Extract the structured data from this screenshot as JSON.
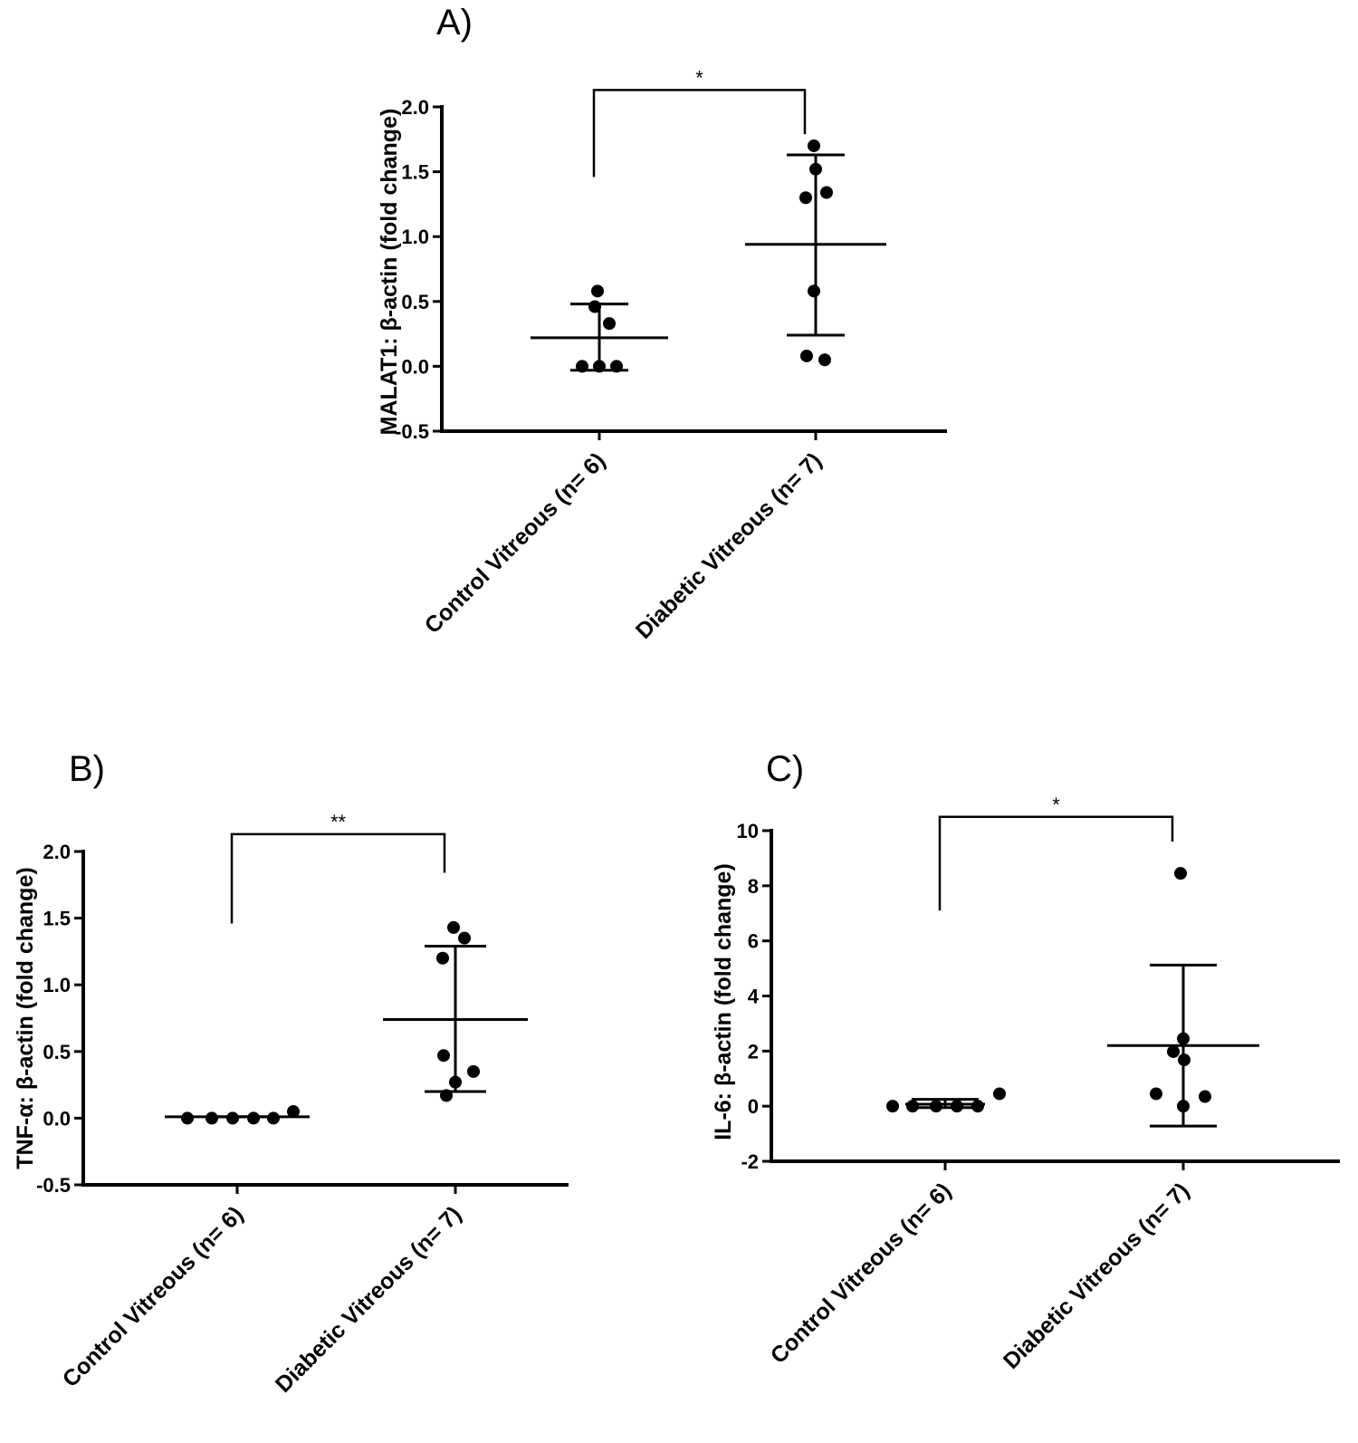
{
  "chart_data": [
    {
      "type": "scatter",
      "panel": "A)",
      "ylabel": "MALAT1: β-actin (fold change)",
      "categories": [
        "Control Vitreous (n= 6)",
        "Diabetic Vitreous (n= 7)"
      ],
      "ylim": [
        -0.5,
        2.0
      ],
      "yticks": [
        "2.0",
        "1.5",
        "1.0",
        "0.5",
        "0.0",
        "-0.5"
      ],
      "ytick_values": [
        2.0,
        1.5,
        1.0,
        0.5,
        0.0,
        -0.5
      ],
      "series": [
        {
          "values": [
            0.58,
            0.46,
            0.33,
            0.0,
            0.0,
            0.0
          ],
          "mean": 0.22,
          "sd_upper": 0.48,
          "sd_lower": -0.03
        },
        {
          "values": [
            1.7,
            1.52,
            1.34,
            1.3,
            0.58,
            0.08,
            0.05
          ],
          "mean": 0.94,
          "sd_upper": 1.63,
          "sd_lower": 0.24
        }
      ],
      "significance": "*",
      "bracket_y": 2.13,
      "bracket_left_bottom": 1.46,
      "bracket_right_bottom": 1.79
    },
    {
      "type": "scatter",
      "panel": "B)",
      "ylabel": "TNF-α: β-actin (fold change)",
      "categories": [
        "Control Vitreous (n= 6)",
        "Diabetic Vitreous (n= 7)"
      ],
      "ylim": [
        -0.5,
        2.0
      ],
      "yticks": [
        "2.0",
        "1.5",
        "1.0",
        "0.5",
        "0.0",
        "-0.5"
      ],
      "ytick_values": [
        2.0,
        1.5,
        1.0,
        0.5,
        0.0,
        -0.5
      ],
      "series": [
        {
          "values": [
            0.0,
            0.0,
            0.0,
            0.0,
            0.0,
            0.05
          ],
          "mean": 0.01,
          "sd_upper": 0.01,
          "sd_lower": 0.01
        },
        {
          "values": [
            1.43,
            1.35,
            1.2,
            0.47,
            0.35,
            0.27,
            0.17
          ],
          "mean": 0.74,
          "sd_upper": 1.29,
          "sd_lower": 0.2
        }
      ],
      "significance": "**",
      "bracket_y": 2.13,
      "bracket_left_bottom": 1.46,
      "bracket_right_bottom": 1.84
    },
    {
      "type": "scatter",
      "panel": "C)",
      "ylabel": "IL-6: β-actin (fold change)",
      "categories": [
        "Control Vitreous (n= 6)",
        "Diabetic Vitreous (n= 7)"
      ],
      "ylim": [
        -2,
        10
      ],
      "yticks": [
        "10",
        "8",
        "6",
        "4",
        "2",
        "0",
        "-2"
      ],
      "ytick_values": [
        10,
        8,
        6,
        4,
        2,
        0,
        -2
      ],
      "series": [
        {
          "values": [
            0.0,
            0.0,
            0.0,
            0.0,
            0.0,
            0.45
          ],
          "mean": 0.07,
          "sd_upper": 0.25,
          "sd_lower": -0.05
        },
        {
          "values": [
            8.45,
            2.45,
            1.98,
            1.68,
            0.45,
            0.35,
            0.0
          ],
          "mean": 2.2,
          "sd_upper": 5.12,
          "sd_lower": -0.72
        }
      ],
      "significance": "*",
      "bracket_y": 10.5,
      "bracket_left_bottom": 7.1,
      "bracket_right_bottom": 9.6
    }
  ]
}
